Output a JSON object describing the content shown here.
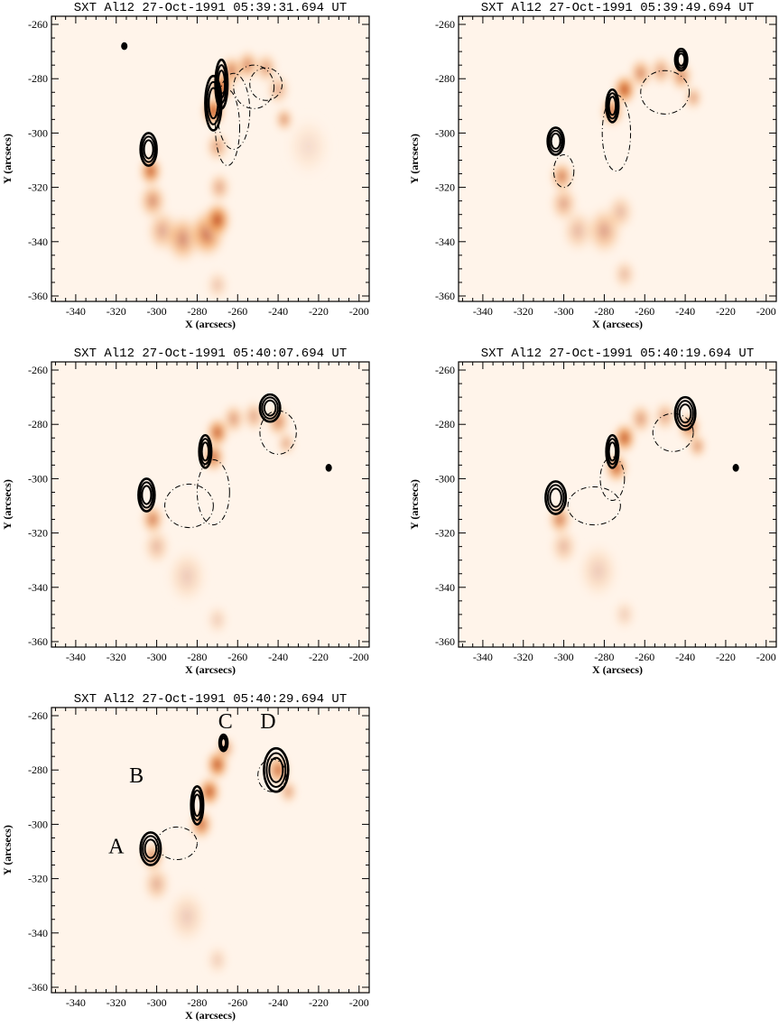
{
  "colors": {
    "background": "#ffffff",
    "emission_low": "#fff4ea",
    "emission_mid": "#f4a45a",
    "emission_high": "#a8240a",
    "contour": "#000000"
  },
  "chart_data": [
    {
      "type": "heatmap",
      "title": "SXT Al12   27-Oct-1991 05:39:31.694 UT",
      "xlabel": "X (arcsecs)",
      "ylabel": "Y (arcsecs)",
      "xlim": [
        -352,
        -195
      ],
      "ylim": [
        -362,
        -257
      ],
      "xticks": [
        -340,
        -320,
        -300,
        -280,
        -260,
        -240,
        -220,
        -200
      ],
      "yticks": [
        -260,
        -280,
        -300,
        -320,
        -340,
        -360
      ],
      "emission": [
        {
          "x": -303,
          "y": -314,
          "i": 0.75,
          "s": 5
        },
        {
          "x": -302,
          "y": -325,
          "i": 0.5,
          "s": 6
        },
        {
          "x": -297,
          "y": -336,
          "i": 0.4,
          "s": 7
        },
        {
          "x": -287,
          "y": -339,
          "i": 0.5,
          "s": 8
        },
        {
          "x": -275,
          "y": -337,
          "i": 0.65,
          "s": 8
        },
        {
          "x": -270,
          "y": -332,
          "i": 0.8,
          "s": 6
        },
        {
          "x": -269,
          "y": -320,
          "i": 0.4,
          "s": 5
        },
        {
          "x": -270,
          "y": -305,
          "i": 0.45,
          "s": 5
        },
        {
          "x": -272,
          "y": -292,
          "i": 0.85,
          "s": 5
        },
        {
          "x": -268,
          "y": -283,
          "i": 0.9,
          "s": 5
        },
        {
          "x": -263,
          "y": -277,
          "i": 0.6,
          "s": 5
        },
        {
          "x": -255,
          "y": -275,
          "i": 0.55,
          "s": 5
        },
        {
          "x": -246,
          "y": -276,
          "i": 0.45,
          "s": 5
        },
        {
          "x": -240,
          "y": -284,
          "i": 0.4,
          "s": 5
        },
        {
          "x": -237,
          "y": -295,
          "i": 0.5,
          "s": 4
        },
        {
          "x": -270,
          "y": -356,
          "i": 0.25,
          "s": 5
        },
        {
          "x": -225,
          "y": -305,
          "i": 0.12,
          "s": 10
        }
      ],
      "contours_solid": [
        {
          "x": -304,
          "y": -306,
          "rx": 4,
          "ry": 6
        },
        {
          "x": -268,
          "y": -282,
          "rx": 3,
          "ry": 9
        },
        {
          "x": -272,
          "y": -289,
          "rx": 4,
          "ry": 10
        },
        {
          "x": -316,
          "y": -268,
          "rx": 1,
          "ry": 1
        }
      ],
      "contours_dashed": [
        {
          "x": -252,
          "y": -283,
          "rx": 10,
          "ry": 8
        },
        {
          "x": -262,
          "y": -292,
          "rx": 8,
          "ry": 14
        },
        {
          "x": -265,
          "y": -298,
          "rx": 6,
          "ry": 14
        },
        {
          "x": -246,
          "y": -282,
          "rx": 8,
          "ry": 6
        }
      ],
      "labels": []
    },
    {
      "type": "heatmap",
      "title": "SXT Al12   27-Oct-1991 05:39:49.694 UT",
      "xlabel": "X (arcsecs)",
      "ylabel": "Y (arcsecs)",
      "xlim": [
        -352,
        -195
      ],
      "ylim": [
        -362,
        -257
      ],
      "xticks": [
        -340,
        -320,
        -300,
        -280,
        -260,
        -240,
        -220,
        -200
      ],
      "yticks": [
        -260,
        -280,
        -300,
        -320,
        -340,
        -360
      ],
      "emission": [
        {
          "x": -301,
          "y": -316,
          "i": 0.6,
          "s": 5
        },
        {
          "x": -300,
          "y": -326,
          "i": 0.4,
          "s": 6
        },
        {
          "x": -293,
          "y": -336,
          "i": 0.3,
          "s": 7
        },
        {
          "x": -280,
          "y": -336,
          "i": 0.4,
          "s": 8
        },
        {
          "x": -272,
          "y": -329,
          "i": 0.3,
          "s": 6
        },
        {
          "x": -276,
          "y": -292,
          "i": 0.7,
          "s": 5
        },
        {
          "x": -270,
          "y": -284,
          "i": 0.85,
          "s": 5
        },
        {
          "x": -262,
          "y": -278,
          "i": 0.55,
          "s": 5
        },
        {
          "x": -252,
          "y": -277,
          "i": 0.45,
          "s": 5
        },
        {
          "x": -242,
          "y": -279,
          "i": 0.55,
          "s": 5
        },
        {
          "x": -236,
          "y": -287,
          "i": 0.45,
          "s": 4
        },
        {
          "x": -270,
          "y": -352,
          "i": 0.3,
          "s": 5
        }
      ],
      "contours_solid": [
        {
          "x": -304,
          "y": -303,
          "rx": 4,
          "ry": 5
        },
        {
          "x": -276,
          "y": -290,
          "rx": 3,
          "ry": 6
        },
        {
          "x": -242,
          "y": -273,
          "rx": 3,
          "ry": 4
        }
      ],
      "contours_dashed": [
        {
          "x": -250,
          "y": -285,
          "rx": 12,
          "ry": 8
        },
        {
          "x": -274,
          "y": -300,
          "rx": 7,
          "ry": 14
        },
        {
          "x": -300,
          "y": -314,
          "rx": 5,
          "ry": 6
        }
      ],
      "labels": []
    },
    {
      "type": "heatmap",
      "title": "SXT Al12   27-Oct-1991 05:40:07.694 UT",
      "xlabel": "X (arcsecs)",
      "ylabel": "Y (arcsecs)",
      "xlim": [
        -352,
        -195
      ],
      "ylim": [
        -362,
        -257
      ],
      "xticks": [
        -340,
        -320,
        -300,
        -280,
        -260,
        -240,
        -220,
        -200
      ],
      "yticks": [
        -260,
        -280,
        -300,
        -320,
        -340,
        -360
      ],
      "emission": [
        {
          "x": -302,
          "y": -315,
          "i": 0.6,
          "s": 5
        },
        {
          "x": -300,
          "y": -325,
          "i": 0.3,
          "s": 6
        },
        {
          "x": -285,
          "y": -336,
          "i": 0.2,
          "s": 9
        },
        {
          "x": -272,
          "y": -292,
          "i": 0.7,
          "s": 5
        },
        {
          "x": -270,
          "y": -283,
          "i": 0.75,
          "s": 5
        },
        {
          "x": -262,
          "y": -278,
          "i": 0.45,
          "s": 5
        },
        {
          "x": -252,
          "y": -277,
          "i": 0.4,
          "s": 5
        },
        {
          "x": -240,
          "y": -279,
          "i": 0.55,
          "s": 5
        },
        {
          "x": -236,
          "y": -287,
          "i": 0.4,
          "s": 4
        },
        {
          "x": -270,
          "y": -352,
          "i": 0.2,
          "s": 5
        }
      ],
      "contours_solid": [
        {
          "x": -305,
          "y": -306,
          "rx": 4,
          "ry": 6
        },
        {
          "x": -276,
          "y": -290,
          "rx": 3,
          "ry": 6
        },
        {
          "x": -244,
          "y": -274,
          "rx": 5,
          "ry": 5
        },
        {
          "x": -215,
          "y": -296,
          "rx": 1,
          "ry": 1
        }
      ],
      "contours_dashed": [
        {
          "x": -284,
          "y": -310,
          "rx": 12,
          "ry": 8
        },
        {
          "x": -240,
          "y": -283,
          "rx": 9,
          "ry": 8
        },
        {
          "x": -272,
          "y": -305,
          "rx": 8,
          "ry": 12
        }
      ],
      "labels": []
    },
    {
      "type": "heatmap",
      "title": "SXT Al12   27-Oct-1991 05:40:19.694 UT",
      "xlabel": "X (arcsecs)",
      "ylabel": "Y (arcsecs)",
      "xlim": [
        -352,
        -195
      ],
      "ylim": [
        -362,
        -257
      ],
      "xticks": [
        -340,
        -320,
        -300,
        -280,
        -260,
        -240,
        -220,
        -200
      ],
      "yticks": [
        -260,
        -280,
        -300,
        -320,
        -340,
        -360
      ],
      "emission": [
        {
          "x": -302,
          "y": -315,
          "i": 0.6,
          "s": 5
        },
        {
          "x": -300,
          "y": -325,
          "i": 0.3,
          "s": 6
        },
        {
          "x": -283,
          "y": -334,
          "i": 0.2,
          "s": 9
        },
        {
          "x": -274,
          "y": -296,
          "i": 0.75,
          "s": 5
        },
        {
          "x": -270,
          "y": -285,
          "i": 0.8,
          "s": 5
        },
        {
          "x": -262,
          "y": -278,
          "i": 0.45,
          "s": 5
        },
        {
          "x": -250,
          "y": -277,
          "i": 0.4,
          "s": 5
        },
        {
          "x": -238,
          "y": -281,
          "i": 0.6,
          "s": 5
        },
        {
          "x": -234,
          "y": -288,
          "i": 0.5,
          "s": 4
        },
        {
          "x": -270,
          "y": -350,
          "i": 0.2,
          "s": 5
        }
      ],
      "contours_solid": [
        {
          "x": -304,
          "y": -307,
          "rx": 5,
          "ry": 6
        },
        {
          "x": -276,
          "y": -290,
          "rx": 3,
          "ry": 6
        },
        {
          "x": -240,
          "y": -276,
          "rx": 5,
          "ry": 6
        },
        {
          "x": -215,
          "y": -296,
          "rx": 1,
          "ry": 1
        }
      ],
      "contours_dashed": [
        {
          "x": -285,
          "y": -310,
          "rx": 13,
          "ry": 7
        },
        {
          "x": -246,
          "y": -283,
          "rx": 10,
          "ry": 7
        },
        {
          "x": -276,
          "y": -300,
          "rx": 6,
          "ry": 8
        }
      ],
      "labels": []
    },
    {
      "type": "heatmap",
      "title": "SXT Al12   27-Oct-1991 05:40:29.694 UT",
      "xlabel": "X (arcsecs)",
      "ylabel": "Y (arcsecs)",
      "xlim": [
        -352,
        -195
      ],
      "ylim": [
        -362,
        -257
      ],
      "xticks": [
        -340,
        -320,
        -300,
        -280,
        -260,
        -240,
        -220,
        -200
      ],
      "yticks": [
        -260,
        -280,
        -300,
        -320,
        -340,
        -360
      ],
      "emission": [
        {
          "x": -302,
          "y": -312,
          "i": 0.55,
          "s": 5
        },
        {
          "x": -300,
          "y": -322,
          "i": 0.35,
          "s": 6
        },
        {
          "x": -285,
          "y": -334,
          "i": 0.2,
          "s": 9
        },
        {
          "x": -278,
          "y": -300,
          "i": 0.7,
          "s": 5
        },
        {
          "x": -274,
          "y": -288,
          "i": 0.8,
          "s": 5
        },
        {
          "x": -270,
          "y": -278,
          "i": 0.8,
          "s": 5
        },
        {
          "x": -266,
          "y": -272,
          "i": 0.5,
          "s": 4
        },
        {
          "x": -240,
          "y": -280,
          "i": 0.7,
          "s": 5
        },
        {
          "x": -235,
          "y": -288,
          "i": 0.45,
          "s": 4
        },
        {
          "x": -270,
          "y": -350,
          "i": 0.2,
          "s": 5
        }
      ],
      "contours_solid": [
        {
          "x": -303,
          "y": -309,
          "rx": 5,
          "ry": 6
        },
        {
          "x": -280,
          "y": -293,
          "rx": 3,
          "ry": 7
        },
        {
          "x": -267,
          "y": -270,
          "rx": 2,
          "ry": 3
        },
        {
          "x": -241,
          "y": -280,
          "rx": 6,
          "ry": 8
        }
      ],
      "contours_dashed": [
        {
          "x": -290,
          "y": -307,
          "rx": 10,
          "ry": 6
        },
        {
          "x": -243,
          "y": -282,
          "rx": 7,
          "ry": 6
        }
      ],
      "labels": [
        {
          "text": "A",
          "x": -320,
          "y": -308
        },
        {
          "text": "B",
          "x": -310,
          "y": -282
        },
        {
          "text": "C",
          "x": -266,
          "y": -262
        },
        {
          "text": "D",
          "x": -245,
          "y": -262
        }
      ]
    }
  ]
}
